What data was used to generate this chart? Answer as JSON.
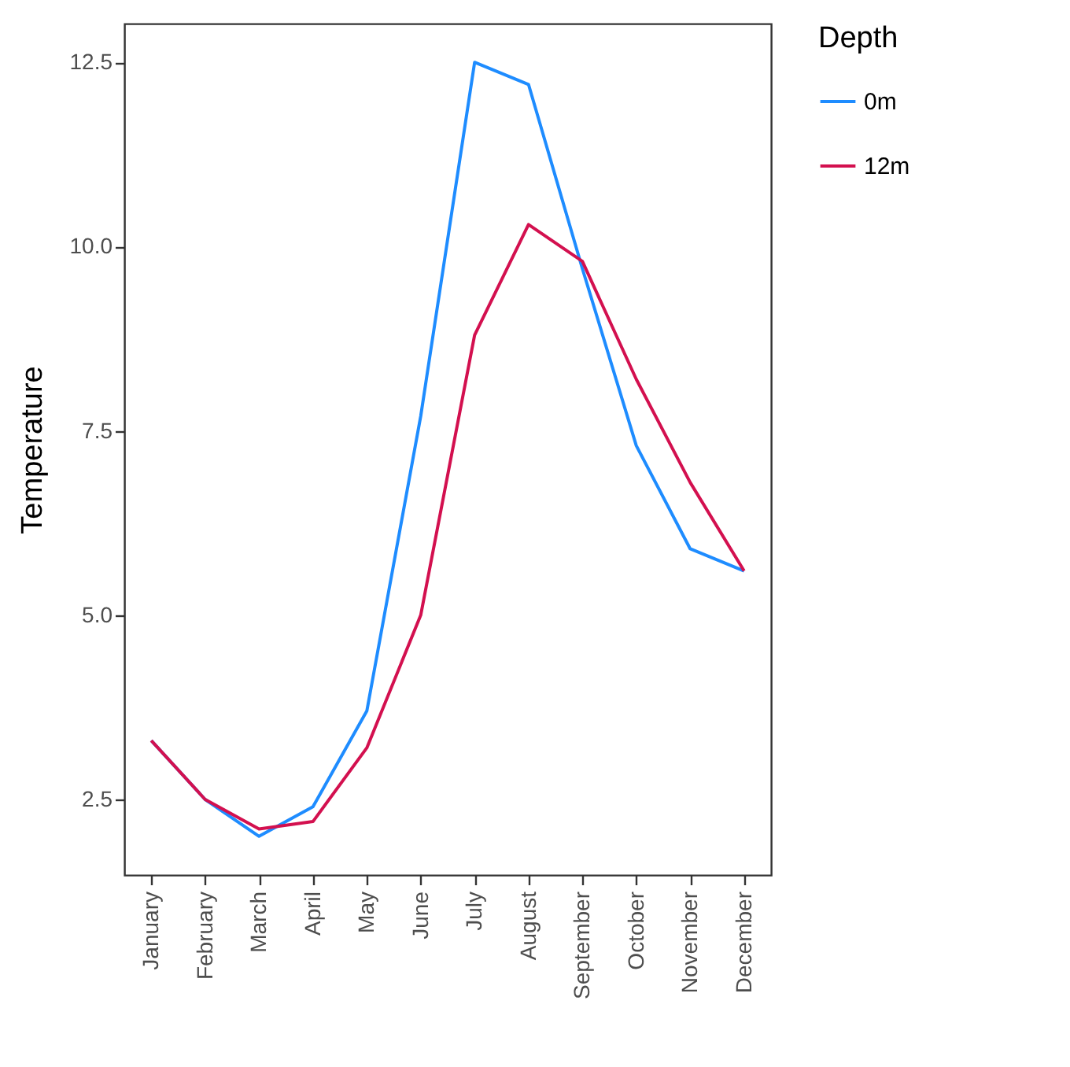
{
  "chart_data": {
    "type": "line",
    "ylabel": "Temperature",
    "legend_title": "Depth",
    "legend": "right",
    "grid": false,
    "marker": "none",
    "line_style": "solid",
    "categories": [
      "January",
      "February",
      "March",
      "April",
      "May",
      "June",
      "July",
      "August",
      "September",
      "October",
      "November",
      "December"
    ],
    "series": [
      {
        "name": "0m",
        "color": "#1e8cff",
        "values": [
          3.3,
          2.5,
          2.0,
          2.4,
          3.7,
          7.7,
          12.5,
          12.2,
          9.7,
          7.3,
          5.9,
          5.6
        ]
      },
      {
        "name": "12m",
        "color": "#d3104f",
        "values": [
          3.3,
          2.5,
          2.1,
          2.2,
          3.2,
          5.0,
          8.8,
          10.3,
          9.8,
          8.2,
          6.8,
          5.6
        ]
      }
    ],
    "ylim": [
      1.475,
      13.025
    ],
    "yticks": [
      2.5,
      {
        "value": 5,
        "label": "5.0"
      },
      7.5,
      {
        "value": 10,
        "label": "10.0"
      },
      12.5
    ]
  }
}
